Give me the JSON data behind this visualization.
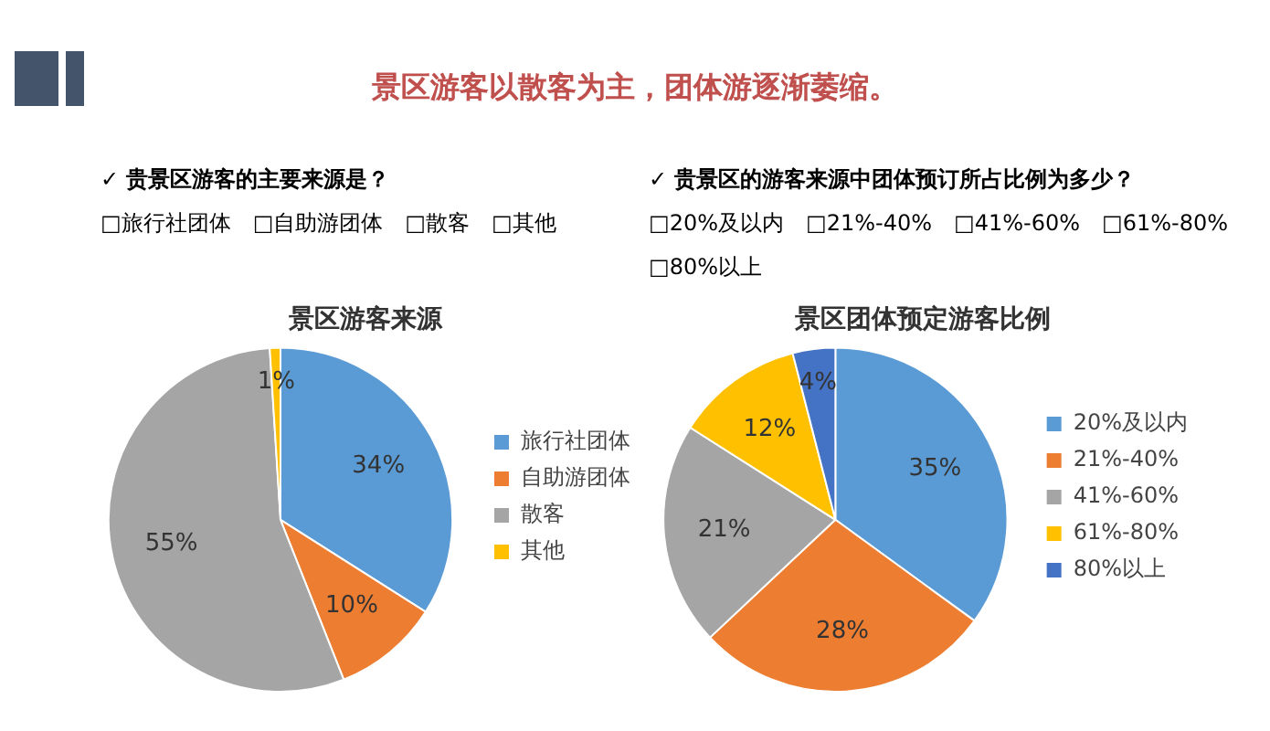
{
  "chart_data": [
    {
      "type": "pie",
      "title": "景区游客来源",
      "annotations": [
        "景区游客以散客为主，团体游逐渐萎缩。",
        "✓ 贵景区游客的主要来源是？",
        "□旅行社团体　□自助游团体　□散客　□其他"
      ],
      "categories": [
        "旅行社团体",
        "自助游团体",
        "散客",
        "其他"
      ],
      "values": [
        34,
        10,
        55,
        1
      ],
      "value_labels": [
        "34%",
        "10%",
        "55%",
        "1%"
      ],
      "colors": [
        "#5b9bd5",
        "#ed7d31",
        "#a5a5a5",
        "#ffc000"
      ],
      "legend": "right"
    },
    {
      "type": "pie",
      "title": "景区团体预定游客比例",
      "annotations": [
        "✓ 贵景区的游客来源中团体预订所占比例为多少？",
        "□20%及以内　□21%-40%　□41%-60%　□61%-80%　□80%以上"
      ],
      "categories": [
        "20%及以内",
        "21%-40%",
        "41%-60%",
        "61%-80%",
        "80%以上"
      ],
      "values": [
        35,
        28,
        21,
        12,
        4
      ],
      "value_labels": [
        "35%",
        "28%",
        "21%",
        "12%",
        "4%"
      ],
      "colors": [
        "#5b9bd5",
        "#ed7d31",
        "#a5a5a5",
        "#ffc000",
        "#4472c4"
      ],
      "legend": "right"
    }
  ]
}
